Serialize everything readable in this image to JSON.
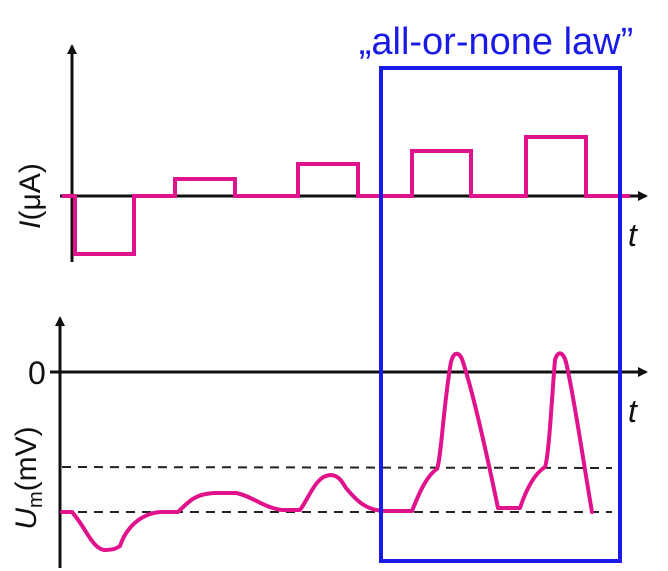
{
  "annotation": {
    "label": "„all-or-none law”",
    "color": "#1a1ae6"
  },
  "top_panel": {
    "y_label_italic": "I",
    "y_label_unit": "(μA)",
    "x_label": "t"
  },
  "bottom_panel": {
    "y_label_italic": "U",
    "y_label_sub": "m",
    "y_label_unit": "(mV)",
    "x_label": "t",
    "zero_label": "0"
  },
  "colors": {
    "trace": "#e0138c",
    "axis": "#111111",
    "dashed": "#222222",
    "box": "#1a1ae6"
  }
}
